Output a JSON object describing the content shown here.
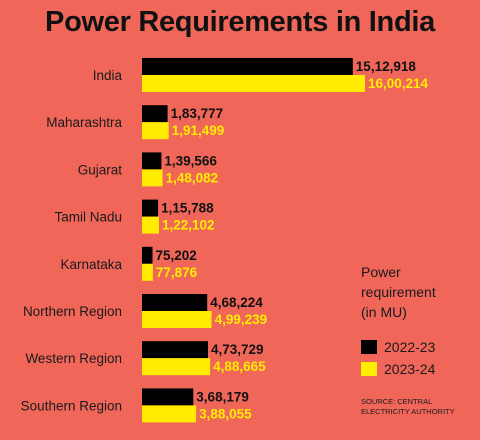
{
  "chart_data": {
    "type": "bar",
    "orientation": "horizontal",
    "title": "Power Requirements in India",
    "categories": [
      "India",
      "Maharashtra",
      "Gujarat",
      "Tamil Nadu",
      "Karnataka",
      "Northern Region",
      "Western Region",
      "Southern Region"
    ],
    "series": [
      {
        "name": "2022-23",
        "values": [
          1512918,
          183777,
          139566,
          115788,
          75202,
          468224,
          473729,
          368179
        ],
        "labels": [
          "15,12,918",
          "1,83,777",
          "1,39,566",
          "1,15,788",
          "75,202",
          "4,68,224",
          "4,73,729",
          "3,68,179"
        ],
        "color": "#000000"
      },
      {
        "name": "2023-24",
        "values": [
          1600214,
          191499,
          148082,
          122102,
          77876,
          499239,
          488665,
          388055
        ],
        "labels": [
          "16,00,214",
          "1,91,499",
          "1,48,082",
          "1,22,102",
          "77,876",
          "4,99,239",
          "4,88,665",
          "3,88,055"
        ],
        "color": "#ffec00"
      }
    ],
    "legend": {
      "title_lines": [
        "Power",
        "requirement",
        "(in MU)"
      ],
      "placement": "right"
    },
    "source_lines": [
      "SOURCE: CENTRAL",
      "ELECTRICITY AUTHORITY"
    ],
    "background_color": "#f0675a",
    "grid": false
  }
}
